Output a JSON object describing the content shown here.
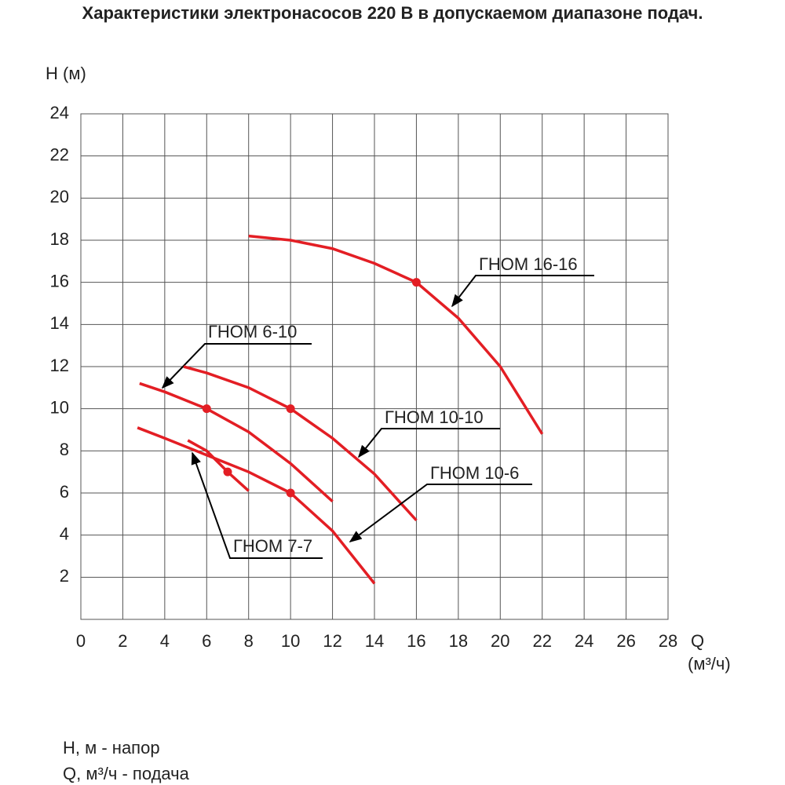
{
  "chart_data": {
    "type": "line",
    "title": "Характеристики электронасосов 220 В в допускаемом диапазоне подач.",
    "y_label": "H (м)",
    "x_label": "Q",
    "x_unit": "(м³/ч)",
    "notes": [
      "H, м - напор",
      "Q, м³/ч - подача"
    ],
    "xlim": [
      0,
      28
    ],
    "xticks": [
      0,
      2,
      4,
      6,
      8,
      10,
      12,
      14,
      16,
      18,
      20,
      22,
      24,
      26,
      28
    ],
    "ylim": [
      0,
      24
    ],
    "yticks": [
      2,
      4,
      6,
      8,
      10,
      12,
      14,
      16,
      18,
      20,
      22,
      24
    ],
    "grid": true,
    "series": [
      {
        "name": "ГНОМ 16-16",
        "color": "#e31e24",
        "x": [
          8,
          10,
          12,
          14,
          16,
          18,
          20,
          22
        ],
        "values": [
          18.2,
          18,
          17.6,
          16.9,
          16,
          14.3,
          12,
          8.8
        ],
        "point": {
          "x": 16,
          "y": 16
        }
      },
      {
        "name": "ГНОМ 6-10",
        "color": "#e31e24",
        "x": [
          2.8,
          4,
          6,
          8,
          10,
          12
        ],
        "values": [
          11.2,
          10.8,
          10,
          8.9,
          7.4,
          5.6
        ],
        "point": {
          "x": 6,
          "y": 10
        }
      },
      {
        "name": "ГНОМ 10-10",
        "color": "#e31e24",
        "x": [
          4.9,
          6,
          8,
          10,
          12,
          14,
          16
        ],
        "values": [
          12,
          11.7,
          11,
          10,
          8.6,
          6.9,
          4.7
        ],
        "point": {
          "x": 10,
          "y": 10
        }
      },
      {
        "name": "ГНОМ 10-6",
        "color": "#e31e24",
        "x": [
          2.7,
          4,
          6,
          8,
          10,
          12,
          14
        ],
        "values": [
          9.1,
          8.6,
          7.8,
          7,
          6,
          4.2,
          1.7
        ],
        "point": {
          "x": 10,
          "y": 6
        }
      },
      {
        "name": "ГНОМ 7-7",
        "color": "#e31e24",
        "x": [
          5.1,
          6,
          7,
          8
        ],
        "values": [
          8.5,
          8,
          7,
          6.1
        ],
        "point": {
          "x": 7,
          "y": 7
        }
      }
    ]
  }
}
